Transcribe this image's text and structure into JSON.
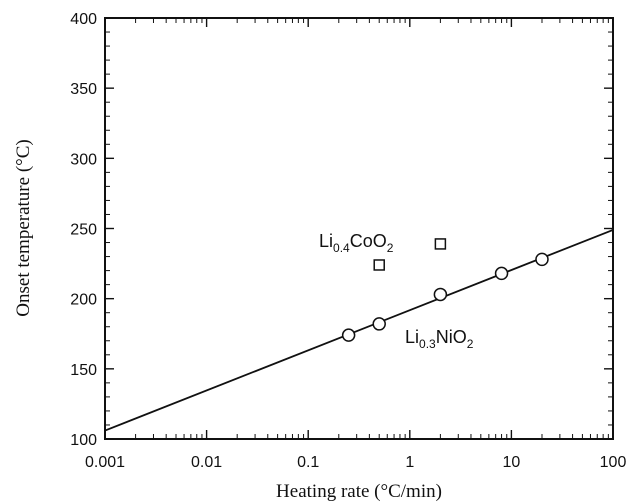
{
  "chart_data": {
    "type": "scatter",
    "xscale": "log",
    "xlim": [
      0.001,
      100
    ],
    "ylim": [
      100,
      400
    ],
    "xlabel": "Heating rate (°C/min)",
    "ylabel": "Onset temperature (°C)",
    "xticks": [
      "0.001",
      "0.01",
      "0.1",
      "1",
      "10",
      "100"
    ],
    "yticks": [
      "100",
      "150",
      "200",
      "250",
      "300",
      "350",
      "400"
    ],
    "series": [
      {
        "name": "Li0.4CoO2",
        "marker": "square",
        "points": [
          [
            0.5,
            224
          ],
          [
            2.0,
            239
          ]
        ]
      },
      {
        "name": "Li0.3NiO2",
        "marker": "circle",
        "points": [
          [
            0.25,
            174
          ],
          [
            0.5,
            182
          ],
          [
            2.0,
            203
          ],
          [
            8.0,
            218
          ],
          [
            20.0,
            228
          ]
        ]
      }
    ],
    "fit_line": {
      "points": [
        [
          0.001,
          106
        ],
        [
          100,
          249
        ]
      ]
    },
    "annotations": [
      {
        "base": "Li",
        "sub1": "0.4",
        "mid": "CoO",
        "sub2": "2"
      },
      {
        "base": "Li",
        "sub1": "0.3",
        "mid": "NiO",
        "sub2": "2"
      }
    ]
  }
}
